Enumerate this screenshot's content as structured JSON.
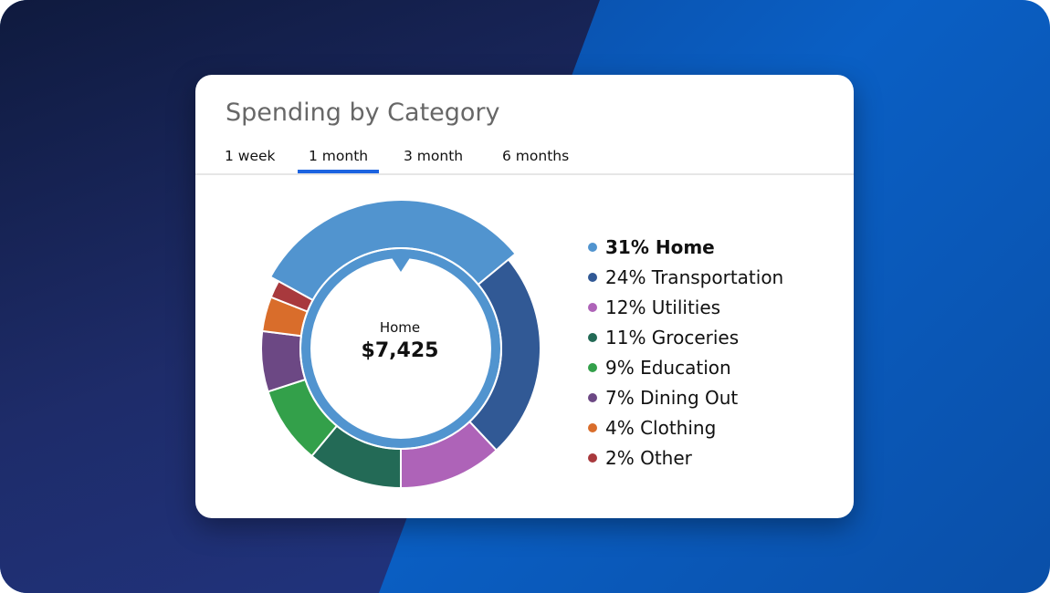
{
  "card": {
    "title": "Spending by Category"
  },
  "tabs": [
    {
      "label": "1 week"
    },
    {
      "label": "1 month",
      "active": true
    },
    {
      "label": "3 month"
    },
    {
      "label": "6 months"
    }
  ],
  "colors": {
    "accent": "#1c63e0"
  },
  "chart_data": {
    "type": "pie",
    "variant": "donut",
    "selected": "Home",
    "center": {
      "label": "Home",
      "value": "$7,425"
    },
    "categories": [
      "Home",
      "Transportation",
      "Utilities",
      "Groceries",
      "Education",
      "Dining Out",
      "Clothing",
      "Other"
    ],
    "values": [
      31,
      24,
      12,
      11,
      9,
      7,
      4,
      2
    ],
    "colors": [
      "#5194cf",
      "#315995",
      "#ae63b8",
      "#236a56",
      "#33a04a",
      "#6c4884",
      "#d96d2b",
      "#a8393d"
    ],
    "legend": [
      {
        "text": "31% Home"
      },
      {
        "text": "24% Transportation"
      },
      {
        "text": "12% Utilities"
      },
      {
        "text": "11% Groceries"
      },
      {
        "text": "9% Education"
      },
      {
        "text": "7% Dining Out"
      },
      {
        "text": "4% Clothing"
      },
      {
        "text": "2% Other"
      }
    ],
    "legend_position": "right"
  }
}
